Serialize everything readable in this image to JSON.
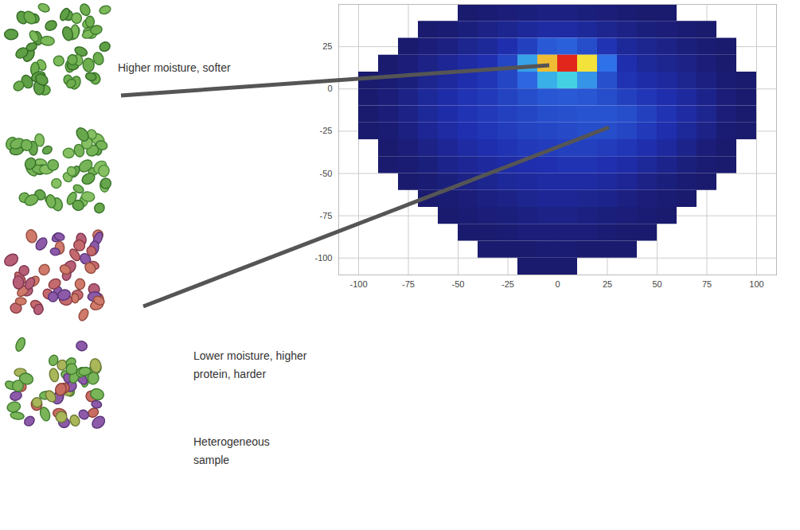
{
  "chart_data": {
    "type": "heatmap",
    "xlim": [
      -110,
      110
    ],
    "ylim": [
      -110,
      50
    ],
    "xticks": [
      -100,
      -75,
      -50,
      -25,
      0,
      25,
      50,
      75,
      100
    ],
    "yticks": [
      -100,
      -75,
      -50,
      -25,
      0,
      25
    ],
    "grid": true,
    "tick_labels": true,
    "x_bins": [
      -110,
      -100,
      -90,
      -80,
      -70,
      -60,
      -50,
      -40,
      -30,
      -20,
      -10,
      0,
      10,
      20,
      30,
      40,
      50,
      60,
      70,
      80,
      90,
      100,
      110
    ],
    "y_bins": [
      50,
      40,
      30,
      20,
      10,
      0,
      -10,
      -20,
      -30,
      -40,
      -50,
      -60,
      -70,
      -80,
      -90,
      -100,
      -110
    ],
    "values": [
      [
        0,
        0,
        0,
        0,
        0,
        0,
        1,
        2,
        3,
        4,
        5,
        5,
        4,
        3,
        2,
        1,
        1,
        0,
        0,
        0,
        0,
        0
      ],
      [
        0,
        0,
        0,
        0,
        1,
        2,
        4,
        6,
        8,
        10,
        12,
        12,
        10,
        8,
        6,
        4,
        3,
        2,
        1,
        0,
        0,
        0
      ],
      [
        0,
        0,
        0,
        1,
        3,
        5,
        8,
        10,
        14,
        20,
        28,
        30,
        24,
        16,
        10,
        8,
        6,
        4,
        2,
        1,
        0,
        0
      ],
      [
        0,
        0,
        1,
        3,
        6,
        9,
        12,
        15,
        22,
        45,
        80,
        100,
        75,
        35,
        14,
        10,
        8,
        6,
        3,
        1,
        0,
        0
      ],
      [
        0,
        1,
        2,
        4,
        8,
        11,
        14,
        17,
        22,
        32,
        48,
        55,
        42,
        25,
        16,
        13,
        11,
        8,
        5,
        2,
        1,
        0
      ],
      [
        0,
        1,
        3,
        6,
        10,
        13,
        16,
        18,
        21,
        24,
        27,
        28,
        27,
        24,
        20,
        17,
        14,
        11,
        7,
        3,
        1,
        0
      ],
      [
        0,
        1,
        3,
        6,
        10,
        13,
        16,
        18,
        20,
        22,
        24,
        25,
        26,
        26,
        24,
        20,
        16,
        12,
        8,
        3,
        1,
        0
      ],
      [
        0,
        1,
        2,
        5,
        9,
        12,
        15,
        17,
        19,
        21,
        22,
        23,
        24,
        24,
        22,
        18,
        14,
        10,
        6,
        2,
        1,
        0
      ],
      [
        0,
        0,
        1,
        3,
        6,
        9,
        12,
        14,
        16,
        18,
        19,
        20,
        20,
        19,
        17,
        14,
        11,
        7,
        3,
        1,
        0,
        0
      ],
      [
        0,
        0,
        1,
        2,
        4,
        7,
        9,
        11,
        13,
        14,
        15,
        16,
        16,
        15,
        13,
        10,
        7,
        4,
        2,
        1,
        0,
        0
      ],
      [
        0,
        0,
        0,
        1,
        2,
        4,
        6,
        8,
        10,
        11,
        12,
        12,
        12,
        11,
        9,
        6,
        4,
        2,
        1,
        0,
        0,
        0
      ],
      [
        0,
        0,
        0,
        0,
        1,
        2,
        3,
        5,
        6,
        8,
        9,
        9,
        8,
        7,
        5,
        3,
        2,
        1,
        0,
        0,
        0,
        0
      ],
      [
        0,
        0,
        0,
        0,
        0,
        1,
        2,
        3,
        4,
        5,
        6,
        6,
        5,
        4,
        3,
        2,
        1,
        0,
        0,
        0,
        0,
        0
      ],
      [
        0,
        0,
        0,
        0,
        0,
        0,
        1,
        1,
        2,
        3,
        3,
        3,
        3,
        2,
        1,
        1,
        0,
        0,
        0,
        0,
        0,
        0
      ],
      [
        0,
        0,
        0,
        0,
        0,
        0,
        0,
        1,
        1,
        1,
        2,
        2,
        1,
        1,
        1,
        0,
        0,
        0,
        0,
        0,
        0,
        0
      ],
      [
        0,
        0,
        0,
        0,
        0,
        0,
        0,
        0,
        0,
        1,
        1,
        1,
        0,
        0,
        0,
        0,
        0,
        0,
        0,
        0,
        0,
        0
      ]
    ],
    "annotations": [
      {
        "lines": [
          "Higher moisture, softer"
        ]
      },
      {
        "lines": [
          "Lower moisture, higher",
          "protein, harder"
        ]
      },
      {
        "lines": [
          "Heterogeneous",
          "sample"
        ]
      }
    ]
  }
}
